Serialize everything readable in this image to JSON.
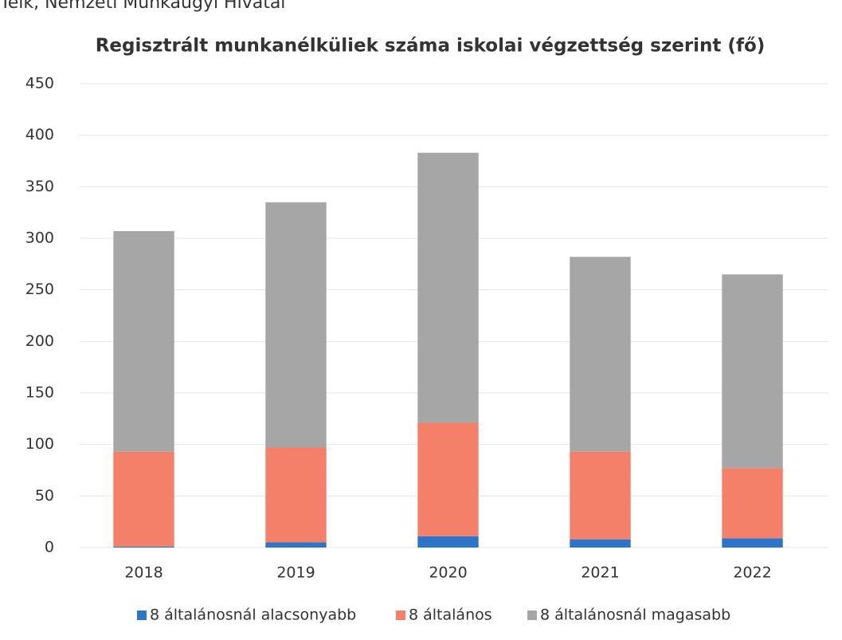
{
  "note": "Telk, Nemzeti Munkaügyi Hivatal",
  "chart_data": {
    "type": "stacked_bar",
    "title": "Regisztrált munkanélküliek száma iskolai végzettség szerint (fő)",
    "categories": [
      "2018",
      "2019",
      "2020",
      "2021",
      "2022"
    ],
    "series": [
      {
        "name": "8 általánosnál alacsonyabb",
        "color": "#2e75c9",
        "values": [
          1,
          5,
          11,
          8,
          9
        ]
      },
      {
        "name": "8 általános",
        "color": "#f4806a",
        "values": [
          92,
          92,
          110,
          85,
          68
        ]
      },
      {
        "name": "8 általánosnál magasabb",
        "color": "#a6a6a6",
        "values": [
          214,
          238,
          262,
          189,
          188
        ]
      }
    ],
    "ylim": [
      0,
      450
    ],
    "yticks": [
      0,
      50,
      100,
      150,
      200,
      250,
      300,
      350,
      400,
      450
    ],
    "grid": true,
    "legend": "bottom"
  }
}
